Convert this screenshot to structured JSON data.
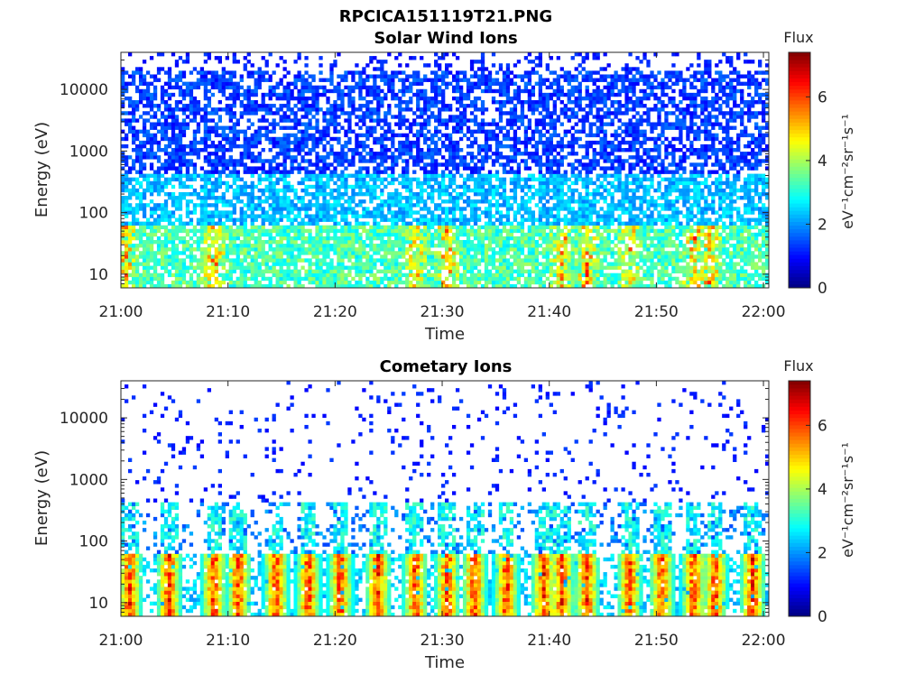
{
  "figure_title": "RPCICA151119T21.PNG",
  "colorbar": {
    "title": "Flux",
    "label": "eV⁻¹cm⁻²sr⁻¹s⁻¹",
    "ticks": [
      "0",
      "2",
      "4",
      "6"
    ],
    "range": [
      0,
      7.4
    ],
    "colormap": "jet"
  },
  "chart_data": [
    {
      "type": "heatmap",
      "title": "Solar Wind Ions",
      "xlabel": "Time",
      "ylabel": "Energy (eV)",
      "x_ticks": [
        "21:00",
        "21:10",
        "21:20",
        "21:30",
        "21:40",
        "21:50",
        "22:00"
      ],
      "y_ticks": [
        "10",
        "100",
        "1000",
        "10000"
      ],
      "x_range": [
        "21:00",
        "22:00"
      ],
      "y_range": [
        6,
        40000
      ],
      "y_scale": "log",
      "z_label": "Flux",
      "z_range": [
        0,
        7.4
      ],
      "bursts_minutes": [
        0.5,
        8.7,
        27.5,
        30.5,
        41.2,
        43.5,
        47.5,
        53.5,
        55
      ]
    },
    {
      "type": "heatmap",
      "title": "Cometary Ions",
      "xlabel": "Time",
      "ylabel": "Energy (eV)",
      "x_ticks": [
        "21:00",
        "21:10",
        "21:20",
        "21:30",
        "21:40",
        "21:50",
        "22:00"
      ],
      "y_ticks": [
        "10",
        "100",
        "1000",
        "10000"
      ],
      "x_range": [
        "21:00",
        "22:00"
      ],
      "y_range": [
        6,
        40000
      ],
      "y_scale": "log",
      "z_label": "Flux",
      "z_range": [
        0,
        7.4
      ],
      "bursts_minutes": [
        0.8,
        4.5,
        8.7,
        11,
        14.5,
        17.5,
        20.5,
        24,
        27.5,
        30.5,
        33,
        36,
        39.5,
        41.2,
        43.5,
        47.5,
        50.5,
        53.5,
        55.5,
        59
      ]
    }
  ]
}
